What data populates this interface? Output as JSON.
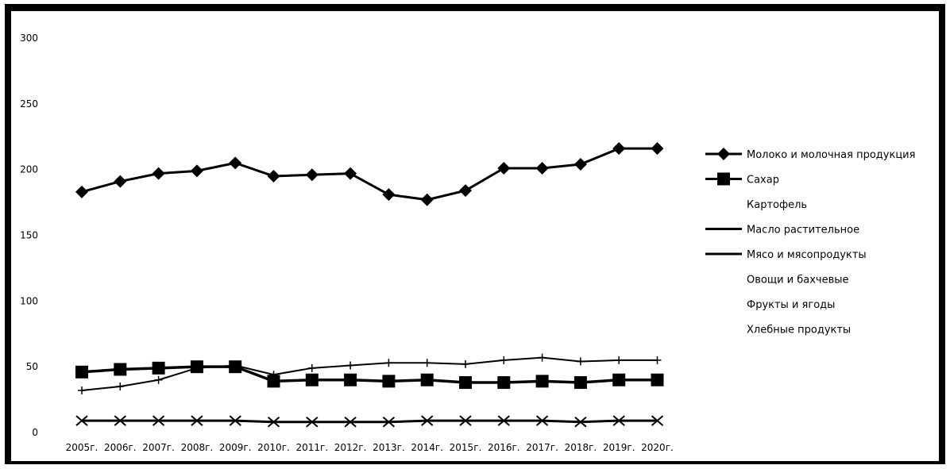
{
  "chart_data": {
    "type": "line",
    "title": "",
    "xlabel": "",
    "ylabel": "",
    "categories": [
      "2005г.",
      "2006г.",
      "2007г.",
      "2008г.",
      "2009г.",
      "2010г.",
      "2011г.",
      "2012г.",
      "2013г.",
      "2014г.",
      "2015г.",
      "2016г.",
      "2017г.",
      "2018г.",
      "2019г.",
      "2020г."
    ],
    "ylim": [
      0,
      300
    ],
    "yticks": [
      "0",
      "50",
      "100",
      "150",
      "200",
      "250",
      "300"
    ],
    "grid": false,
    "legend_position": "right",
    "series": [
      {
        "name": "Молоко и молочная продукция",
        "marker": "diamond",
        "color": "#000000",
        "values": [
          183,
          191,
          197,
          199,
          205,
          195,
          196,
          197,
          181,
          177,
          184,
          201,
          201,
          204,
          216,
          216
        ]
      },
      {
        "name": "Сахар",
        "marker": "square",
        "color": "#000000",
        "values": [
          46,
          48,
          49,
          50,
          50,
          39,
          40,
          40,
          39,
          40,
          38,
          38,
          39,
          38,
          40,
          40
        ]
      },
      {
        "name": "Картофель",
        "marker": "none",
        "color": "#ffffff",
        "values": [
          null,
          null,
          null,
          null,
          null,
          null,
          null,
          null,
          null,
          null,
          null,
          null,
          null,
          null,
          null,
          null
        ]
      },
      {
        "name": "Масло растительное",
        "marker": "x",
        "color": "#000000",
        "values": [
          9,
          9,
          9,
          9,
          9,
          8,
          8,
          8,
          8,
          9,
          9,
          9,
          9,
          8,
          9,
          9
        ]
      },
      {
        "name": "Мясо и мясопродукты",
        "marker": "plus",
        "color": "#000000",
        "values": [
          32,
          35,
          40,
          49,
          51,
          44,
          49,
          51,
          53,
          53,
          52,
          55,
          57,
          54,
          55,
          55
        ]
      },
      {
        "name": "Овощи и бахчевые",
        "marker": "none",
        "color": "#ffffff",
        "values": [
          null,
          null,
          null,
          null,
          null,
          null,
          null,
          null,
          null,
          null,
          null,
          null,
          null,
          null,
          null,
          null
        ]
      },
      {
        "name": "Фрукты и ягоды",
        "marker": "none",
        "color": "#ffffff",
        "values": [
          null,
          null,
          null,
          null,
          null,
          null,
          null,
          null,
          null,
          null,
          null,
          null,
          null,
          null,
          null,
          null
        ]
      },
      {
        "name": "Хлебные продукты",
        "marker": "none",
        "color": "#ffffff",
        "values": [
          null,
          null,
          null,
          null,
          null,
          null,
          null,
          null,
          null,
          null,
          null,
          null,
          null,
          null,
          null,
          null
        ]
      }
    ]
  }
}
